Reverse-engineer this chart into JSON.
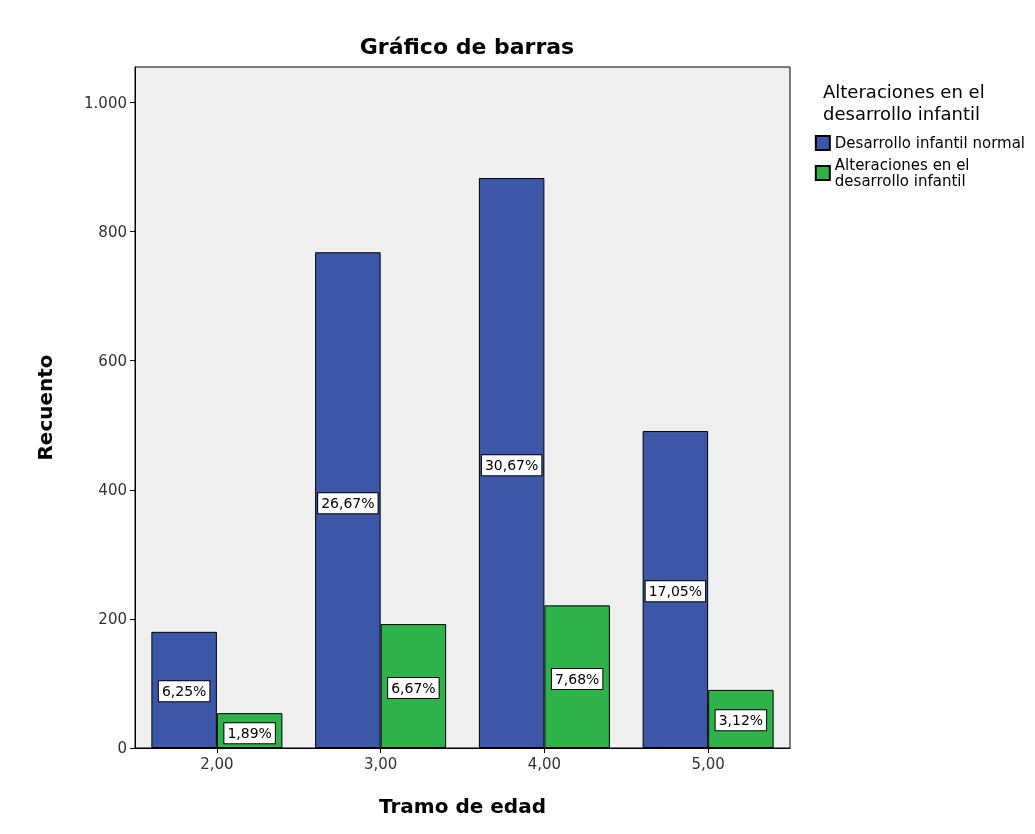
{
  "chart_data": {
    "type": "bar",
    "title": "Gráfico de barras",
    "xlabel": "Tramo de edad",
    "ylabel": "Recuento",
    "legend_title": "Alteraciones en el\ndesarrollo infantil",
    "categories": [
      "2,00",
      "3,00",
      "4,00",
      "5,00"
    ],
    "series": [
      {
        "name": "Desarrollo infantil normal",
        "color": "#3c56a8",
        "values": [
          180,
          768,
          883,
          491
        ]
      },
      {
        "name": "Alteraciones en el\ndesarrollo infantil",
        "color": "#2db34a",
        "values": [
          54,
          192,
          221,
          90
        ]
      }
    ],
    "annotations": [
      {
        "text": "6,25%",
        "x": "2,00",
        "y": 88
      },
      {
        "text": "1,89%",
        "x": "2,00",
        "y": 23
      },
      {
        "text": "26,67%",
        "x": "3,00",
        "y": 379
      },
      {
        "text": "6,67%",
        "x": "3,00",
        "y": 93
      },
      {
        "text": "30,67%",
        "x": "4,00",
        "y": 438
      },
      {
        "text": "7,68%",
        "x": "4,00",
        "y": 107
      },
      {
        "text": "17,05%",
        "x": "5,00",
        "y": 243
      },
      {
        "text": "3,12%",
        "x": "5,00",
        "y": 43
      }
    ],
    "ylim": [
      0,
      1055
    ],
    "yticks": [
      0,
      200,
      400,
      600,
      800,
      {
        "value": 1000,
        "label": "1.000"
      }
    ],
    "grid": false,
    "legend": "top right"
  }
}
